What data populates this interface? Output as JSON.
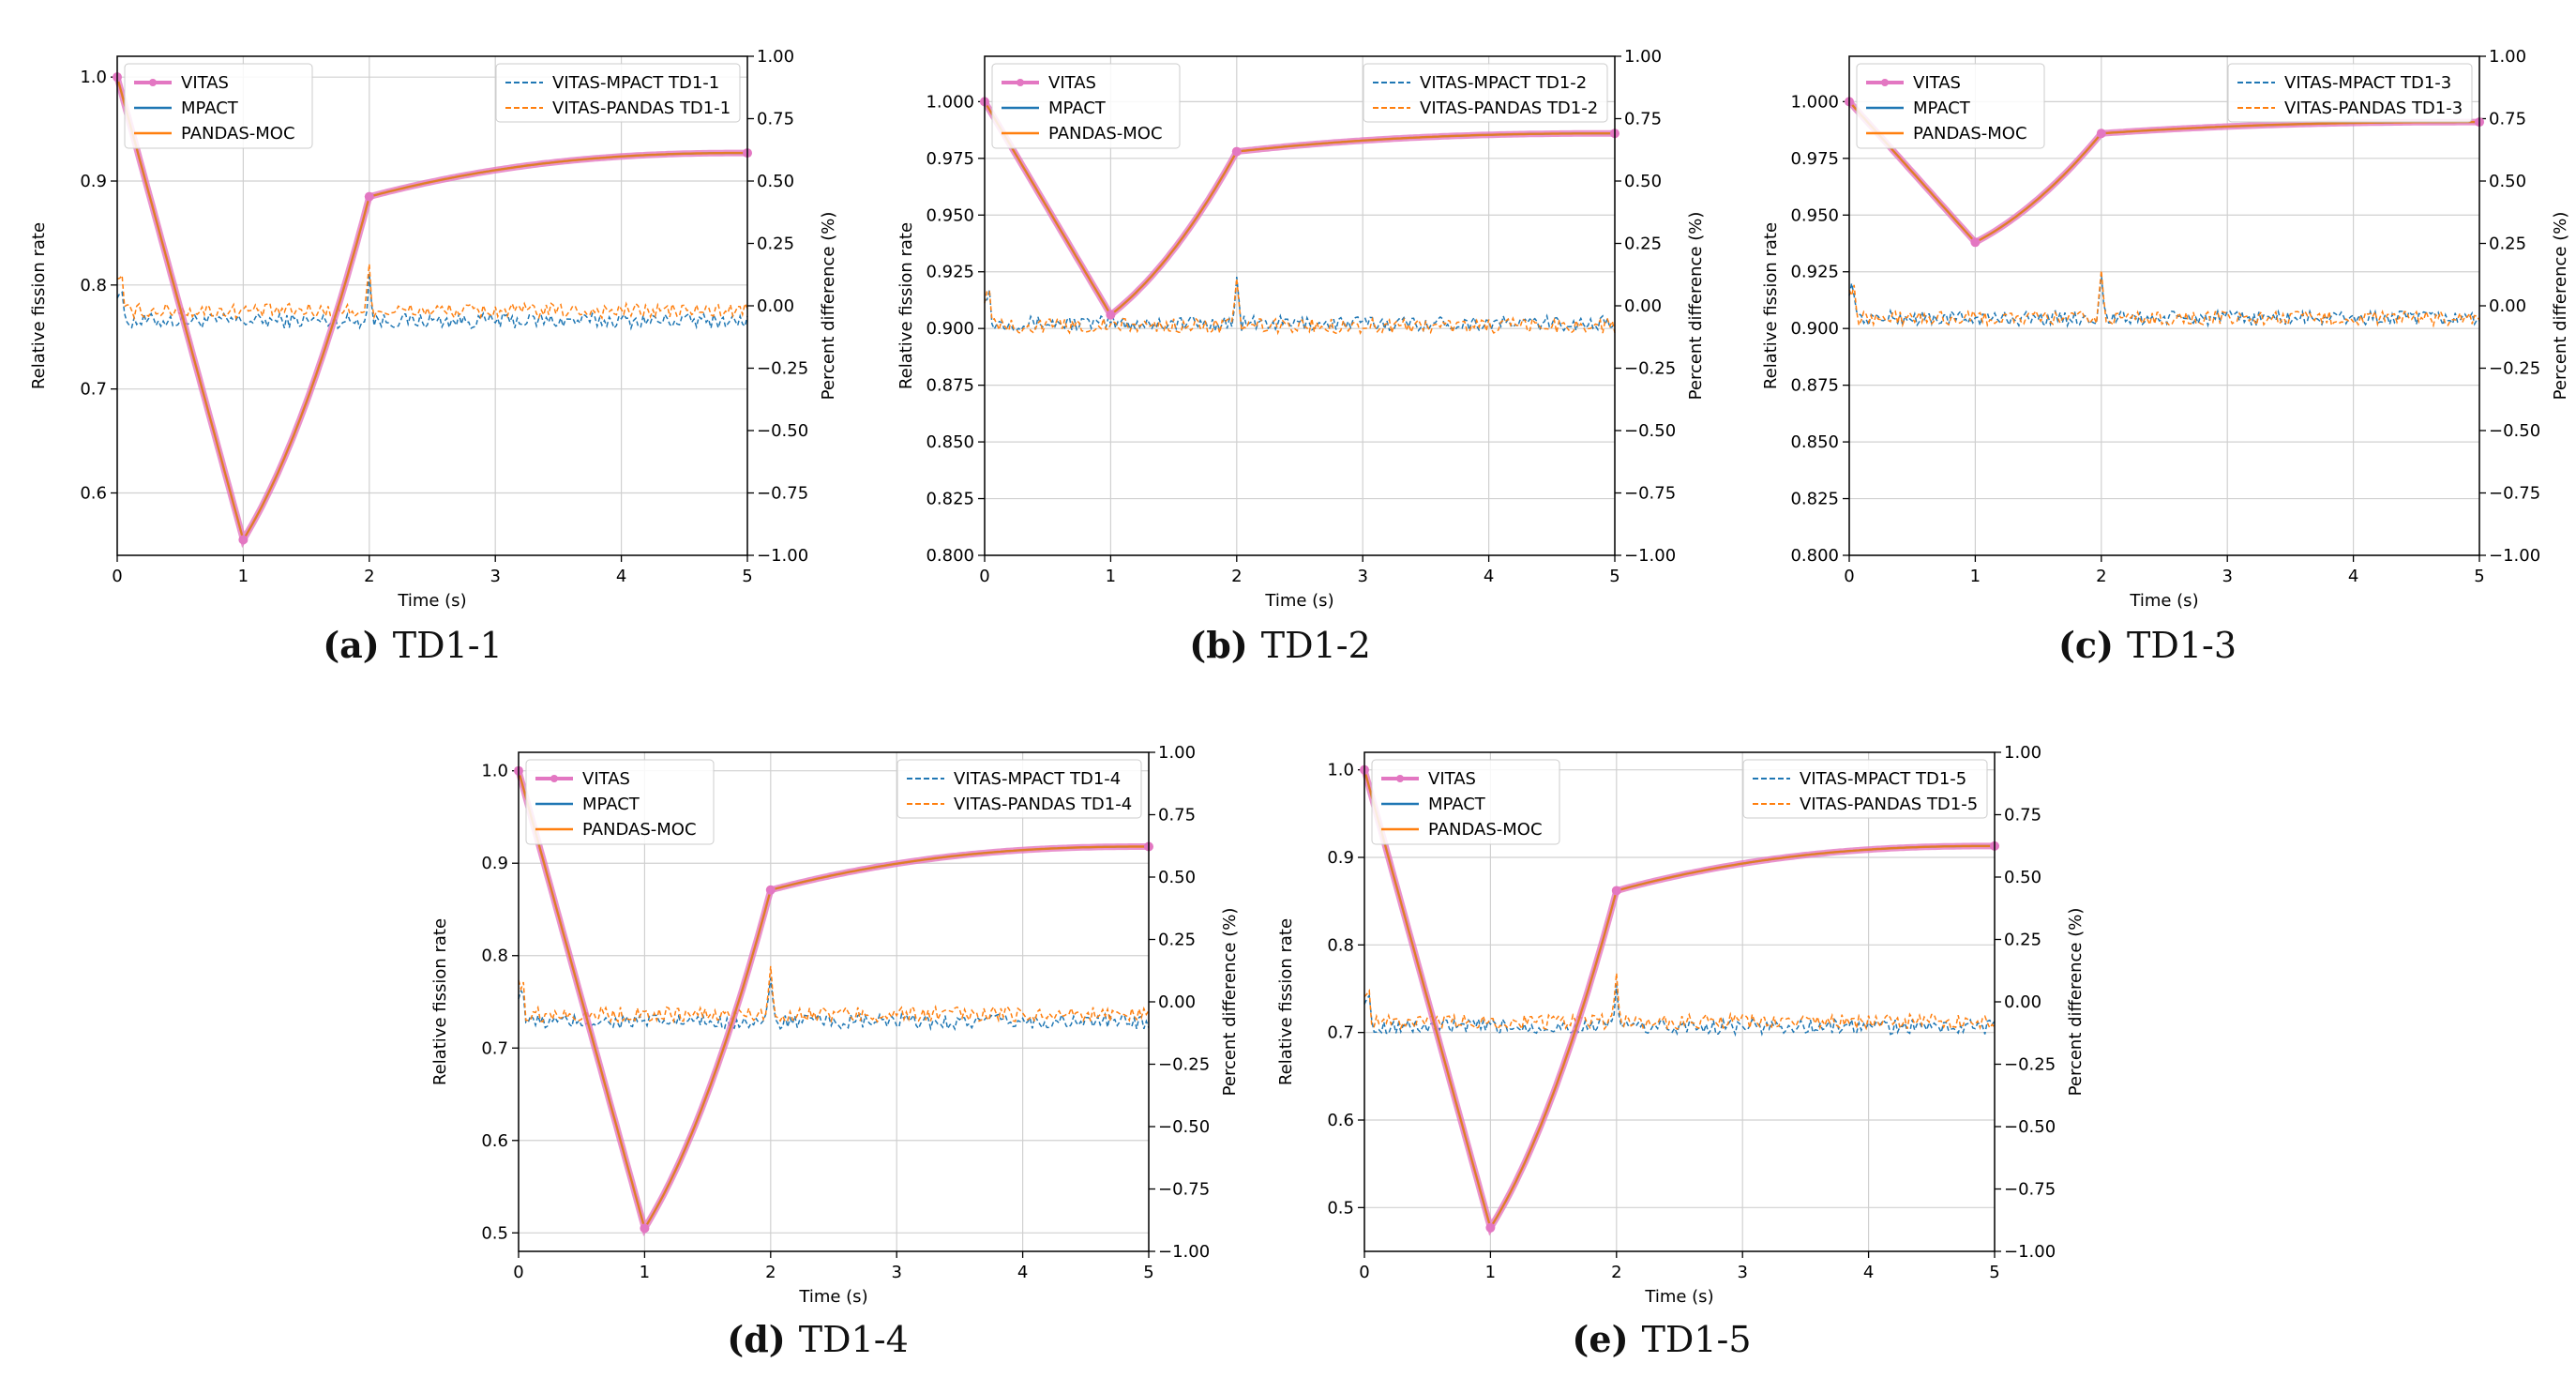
{
  "figure": {
    "panels": [
      {
        "letter": "(a)",
        "caption": "TD1-1"
      },
      {
        "letter": "(b)",
        "caption": "TD1-2"
      },
      {
        "letter": "(c)",
        "caption": "TD1-3"
      },
      {
        "letter": "(d)",
        "caption": "TD1-4"
      },
      {
        "letter": "(e)",
        "caption": "TD1-5"
      }
    ]
  },
  "colors": {
    "vitas": "#e377c2",
    "mpact": "#1f77b4",
    "pandas": "#ff7f0e",
    "grid": "#d0d0d0"
  },
  "chart_data": [
    {
      "type": "line",
      "id": "TD1-1",
      "caption": "TD1-1",
      "xlabel": "Time (s)",
      "ylabel": "Relative fission rate",
      "y2label": "Percent difference (%)",
      "xlim": [
        0,
        5
      ],
      "ylim": [
        0.54,
        1.02
      ],
      "y2lim": [
        -1.0,
        1.0
      ],
      "xticks": [
        0,
        1,
        2,
        3,
        4,
        5
      ],
      "yticks": [
        0.6,
        0.7,
        0.8,
        0.9,
        1.0
      ],
      "y2ticks": [
        1.0,
        0.75,
        0.5,
        0.25,
        0.0,
        -0.25,
        -0.5,
        -0.75,
        -1.0
      ],
      "legend_left": [
        "VITAS",
        "MPACT",
        "PANDAS-MOC"
      ],
      "legend_right": [
        "VITAS-MPACT TD1-1",
        "VITAS-PANDAS TD1-1"
      ],
      "minimum": 0.555,
      "at_2s": 0.885,
      "final": 0.927,
      "diff_mpact_mean": -0.06,
      "diff_pandas_mean": -0.02,
      "diff_noise": 0.03
    },
    {
      "type": "line",
      "id": "TD1-2",
      "caption": "TD1-2",
      "xlabel": "Time (s)",
      "ylabel": "Relative fission rate",
      "y2label": "Percent difference (%)",
      "xlim": [
        0,
        5
      ],
      "ylim": [
        0.8,
        1.02
      ],
      "y2lim": [
        -1.0,
        1.0
      ],
      "xticks": [
        0,
        1,
        2,
        3,
        4,
        5
      ],
      "yticks": [
        0.8,
        0.825,
        0.85,
        0.875,
        0.9,
        0.925,
        0.95,
        0.975,
        1.0
      ],
      "y2ticks": [
        1.0,
        0.75,
        0.5,
        0.25,
        0.0,
        -0.25,
        -0.5,
        -0.75,
        -1.0
      ],
      "legend_left": [
        "VITAS",
        "MPACT",
        "PANDAS-MOC"
      ],
      "legend_right": [
        "VITAS-MPACT TD1-2",
        "VITAS-PANDAS TD1-2"
      ],
      "minimum": 0.906,
      "at_2s": 0.978,
      "final": 0.986,
      "diff_mpact_mean": -0.07,
      "diff_pandas_mean": -0.08,
      "diff_noise": 0.03
    },
    {
      "type": "line",
      "id": "TD1-3",
      "caption": "TD1-3",
      "xlabel": "Time (s)",
      "ylabel": "Relative fission rate",
      "y2label": "Percent difference (%)",
      "xlim": [
        0,
        5
      ],
      "ylim": [
        0.8,
        1.02
      ],
      "y2lim": [
        -1.0,
        1.0
      ],
      "xticks": [
        0,
        1,
        2,
        3,
        4,
        5
      ],
      "yticks": [
        0.8,
        0.825,
        0.85,
        0.875,
        0.9,
        0.925,
        0.95,
        0.975,
        1.0
      ],
      "y2ticks": [
        1.0,
        0.75,
        0.5,
        0.25,
        0.0,
        -0.25,
        -0.5,
        -0.75,
        -1.0
      ],
      "legend_left": [
        "VITAS",
        "MPACT",
        "PANDAS-MOC"
      ],
      "legend_right": [
        "VITAS-MPACT TD1-3",
        "VITAS-PANDAS TD1-3"
      ],
      "minimum": 0.938,
      "at_2s": 0.986,
      "final": 0.991,
      "diff_mpact_mean": -0.05,
      "diff_pandas_mean": -0.05,
      "diff_noise": 0.03
    },
    {
      "type": "line",
      "id": "TD1-4",
      "caption": "TD1-4",
      "xlabel": "Time (s)",
      "ylabel": "Relative fission rate",
      "y2label": "Percent difference (%)",
      "xlim": [
        0,
        5
      ],
      "ylim": [
        0.48,
        1.02
      ],
      "y2lim": [
        -1.0,
        1.0
      ],
      "xticks": [
        0,
        1,
        2,
        3,
        4,
        5
      ],
      "yticks": [
        0.5,
        0.6,
        0.7,
        0.8,
        0.9,
        1.0
      ],
      "y2ticks": [
        1.0,
        0.75,
        0.5,
        0.25,
        0.0,
        -0.25,
        -0.5,
        -0.75,
        -1.0
      ],
      "legend_left": [
        "VITAS",
        "MPACT",
        "PANDAS-MOC"
      ],
      "legend_right": [
        "VITAS-MPACT TD1-4",
        "VITAS-PANDAS TD1-4"
      ],
      "minimum": 0.505,
      "at_2s": 0.871,
      "final": 0.918,
      "diff_mpact_mean": -0.08,
      "diff_pandas_mean": -0.05,
      "diff_noise": 0.03
    },
    {
      "type": "line",
      "id": "TD1-5",
      "caption": "TD1-5",
      "xlabel": "Time (s)",
      "ylabel": "Relative fission rate",
      "y2label": "Percent difference (%)",
      "xlim": [
        0,
        5
      ],
      "ylim": [
        0.45,
        1.02
      ],
      "y2lim": [
        -1.0,
        1.0
      ],
      "xticks": [
        0,
        1,
        2,
        3,
        4,
        5
      ],
      "yticks": [
        0.5,
        0.6,
        0.7,
        0.8,
        0.9,
        1.0
      ],
      "y2ticks": [
        1.0,
        0.75,
        0.5,
        0.25,
        0.0,
        -0.25,
        -0.5,
        -0.75,
        -1.0
      ],
      "legend_left": [
        "VITAS",
        "MPACT",
        "PANDAS-MOC"
      ],
      "legend_right": [
        "VITAS-MPACT TD1-5",
        "VITAS-PANDAS TD1-5"
      ],
      "minimum": 0.477,
      "at_2s": 0.862,
      "final": 0.913,
      "diff_mpact_mean": -0.1,
      "diff_pandas_mean": -0.08,
      "diff_noise": 0.03
    }
  ]
}
